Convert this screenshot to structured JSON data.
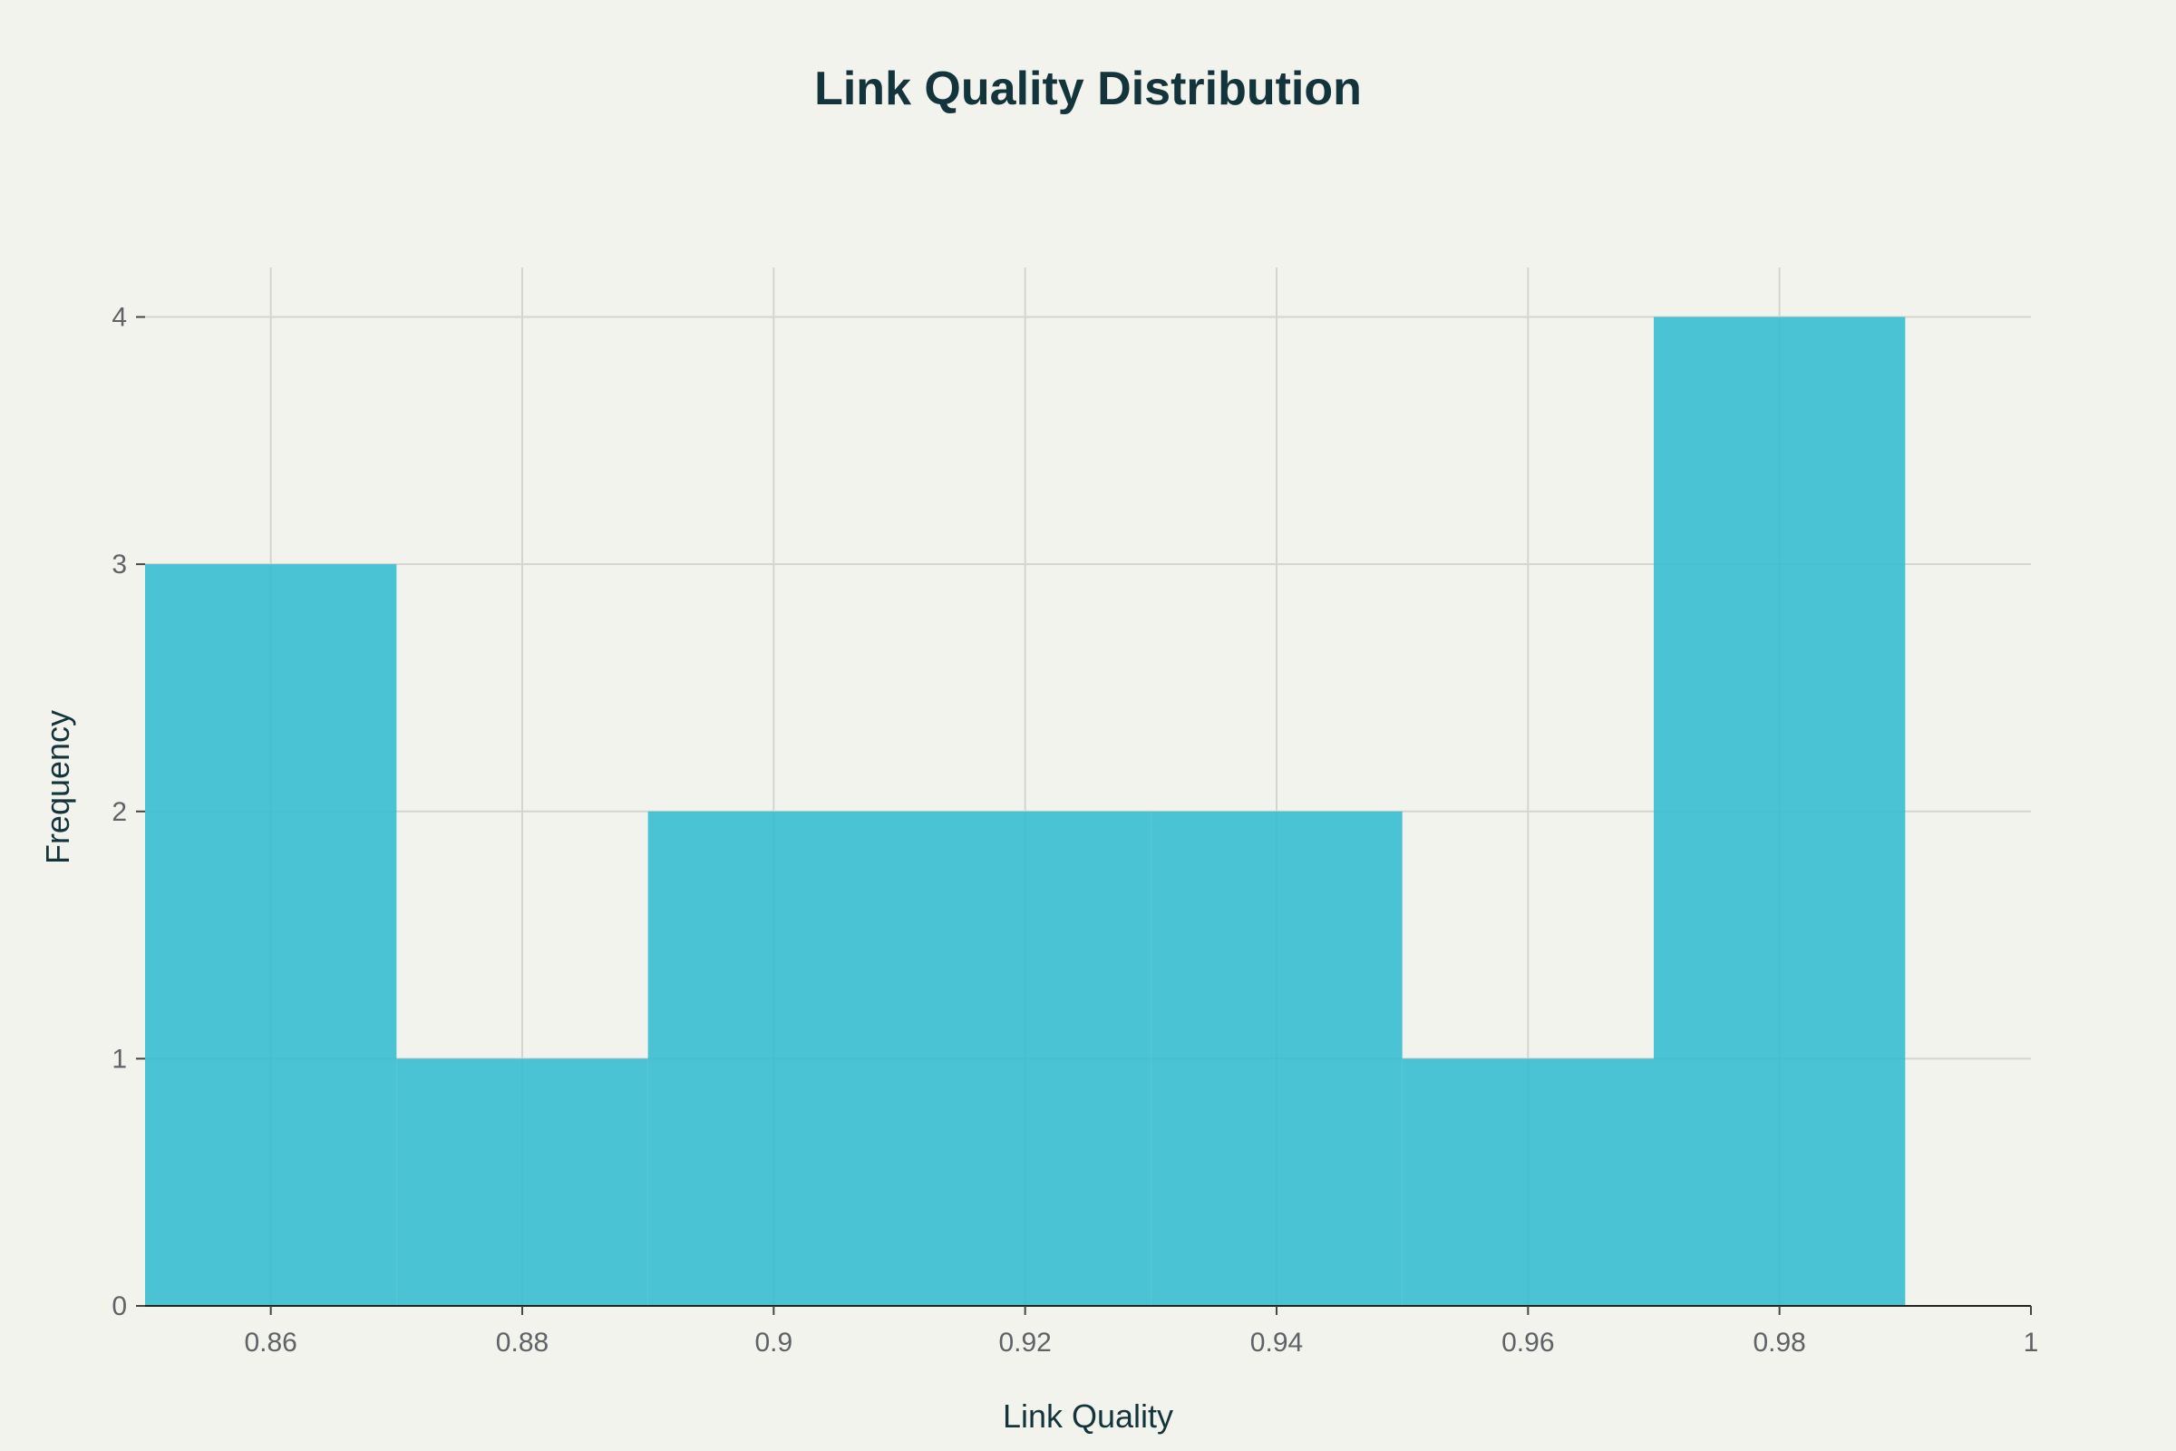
{
  "chart_data": {
    "type": "bar",
    "title": "Link Quality Distribution",
    "xlabel": "Link Quality",
    "ylabel": "Frequency",
    "xlim": [
      0.85,
      1.0
    ],
    "ylim": [
      0,
      4.2
    ],
    "x_ticks": [
      0.86,
      0.88,
      0.9,
      0.92,
      0.94,
      0.96,
      0.98,
      1.0
    ],
    "x_tick_labels": [
      "0.86",
      "0.88",
      "0.9",
      "0.92",
      "0.94",
      "0.96",
      "0.98",
      "1"
    ],
    "y_ticks": [
      0,
      1,
      2,
      3,
      4
    ],
    "y_tick_labels": [
      "0",
      "1",
      "2",
      "3",
      "4"
    ],
    "bins": [
      {
        "start": 0.85,
        "end": 0.87,
        "count": 3
      },
      {
        "start": 0.87,
        "end": 0.89,
        "count": 1
      },
      {
        "start": 0.89,
        "end": 0.91,
        "count": 2
      },
      {
        "start": 0.91,
        "end": 0.93,
        "count": 2
      },
      {
        "start": 0.93,
        "end": 0.95,
        "count": 2
      },
      {
        "start": 0.95,
        "end": 0.97,
        "count": 1
      },
      {
        "start": 0.97,
        "end": 0.99,
        "count": 4
      }
    ],
    "grid": true,
    "bar_color": "#32bcd0"
  }
}
